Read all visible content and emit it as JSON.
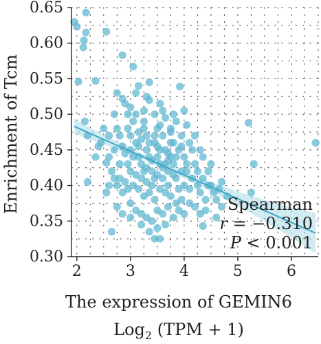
{
  "chart_data": {
    "type": "scatter",
    "xlabel_line1": "The expression of GEMIN6",
    "xlabel_line2_prefix": "Log",
    "xlabel_line2_sub": "2",
    "xlabel_line2_suffix": " (TPM + 1)",
    "ylabel": "Enrichment of Tcm",
    "xlim": [
      1.9,
      6.5
    ],
    "ylim": [
      0.3,
      0.65
    ],
    "x_ticks": [
      2,
      3,
      4,
      5,
      6
    ],
    "x_tick_labels": [
      "2",
      "3",
      "4",
      "5",
      "6"
    ],
    "y_ticks": [
      0.3,
      0.35,
      0.4,
      0.45,
      0.5,
      0.55,
      0.6,
      0.65
    ],
    "y_tick_labels": [
      "0.30",
      "0.35",
      "0.40",
      "0.45",
      "0.50",
      "0.55",
      "0.60",
      "0.65"
    ],
    "grid": "dotted",
    "point_color": "#5bb5cf",
    "line_color": "#3aa6c5",
    "band_color": "#a9dbe8",
    "regression": {
      "x_start": 1.95,
      "y_start": 0.483,
      "x_end": 6.45,
      "y_end": 0.333
    },
    "annotation": {
      "line1": "Spearman",
      "line2_var": "r",
      "line2_value": " = −0.310",
      "line3_var": "P",
      "line3_value": " < 0.001",
      "position": "bottom-right"
    },
    "points": [
      [
        1.95,
        0.63
      ],
      [
        2.0,
        0.623
      ],
      [
        2.17,
        0.643
      ],
      [
        2.17,
        0.615
      ],
      [
        2.13,
        0.604
      ],
      [
        2.12,
        0.594
      ],
      [
        2.55,
        0.616
      ],
      [
        2.03,
        0.546
      ],
      [
        2.35,
        0.547
      ],
      [
        2.85,
        0.583
      ],
      [
        3.05,
        0.567
      ],
      [
        3.35,
        0.545
      ],
      [
        3.15,
        0.54
      ],
      [
        3.92,
        0.539
      ],
      [
        2.75,
        0.53
      ],
      [
        2.85,
        0.522
      ],
      [
        2.15,
        0.49
      ],
      [
        2.2,
        0.47
      ],
      [
        2.2,
        0.405
      ],
      [
        2.65,
        0.335
      ],
      [
        3.55,
        0.325
      ],
      [
        4.35,
        0.343
      ],
      [
        4.7,
        0.37
      ],
      [
        4.7,
        0.405
      ],
      [
        5.2,
        0.488
      ],
      [
        5.3,
        0.43
      ],
      [
        5.25,
        0.39
      ],
      [
        6.45,
        0.46
      ],
      [
        2.6,
        0.44
      ],
      [
        2.55,
        0.432
      ],
      [
        2.45,
        0.46
      ],
      [
        2.7,
        0.5
      ],
      [
        2.75,
        0.48
      ],
      [
        2.8,
        0.47
      ],
      [
        2.85,
        0.455
      ],
      [
        2.9,
        0.445
      ],
      [
        2.95,
        0.43
      ],
      [
        3.0,
        0.42
      ],
      [
        3.0,
        0.47
      ],
      [
        3.05,
        0.49
      ],
      [
        3.1,
        0.5
      ],
      [
        3.1,
        0.46
      ],
      [
        3.15,
        0.44
      ],
      [
        3.2,
        0.43
      ],
      [
        3.2,
        0.41
      ],
      [
        3.25,
        0.48
      ],
      [
        3.3,
        0.47
      ],
      [
        3.3,
        0.45
      ],
      [
        3.35,
        0.44
      ],
      [
        3.4,
        0.42
      ],
      [
        3.4,
        0.4
      ],
      [
        3.45,
        0.46
      ],
      [
        3.5,
        0.48
      ],
      [
        3.5,
        0.44
      ],
      [
        3.55,
        0.43
      ],
      [
        3.6,
        0.41
      ],
      [
        3.6,
        0.47
      ],
      [
        3.65,
        0.45
      ],
      [
        3.7,
        0.42
      ],
      [
        3.7,
        0.4
      ],
      [
        3.75,
        0.44
      ],
      [
        3.8,
        0.46
      ],
      [
        3.8,
        0.43
      ],
      [
        3.85,
        0.41
      ],
      [
        3.9,
        0.45
      ],
      [
        3.95,
        0.42
      ],
      [
        4.0,
        0.44
      ],
      [
        4.0,
        0.4
      ],
      [
        4.05,
        0.43
      ],
      [
        4.1,
        0.46
      ],
      [
        4.15,
        0.41
      ],
      [
        4.2,
        0.43
      ],
      [
        4.25,
        0.4
      ],
      [
        4.3,
        0.39
      ],
      [
        4.35,
        0.41
      ],
      [
        4.4,
        0.38
      ],
      [
        4.5,
        0.4
      ],
      [
        4.55,
        0.39
      ],
      [
        4.6,
        0.38
      ],
      [
        4.1,
        0.375
      ],
      [
        3.95,
        0.38
      ],
      [
        3.85,
        0.375
      ],
      [
        3.75,
        0.385
      ],
      [
        3.65,
        0.39
      ],
      [
        3.55,
        0.395
      ],
      [
        3.45,
        0.38
      ],
      [
        3.35,
        0.39
      ],
      [
        3.25,
        0.385
      ],
      [
        3.15,
        0.395
      ],
      [
        3.05,
        0.4
      ],
      [
        2.95,
        0.395
      ],
      [
        2.85,
        0.39
      ],
      [
        2.75,
        0.4
      ],
      [
        2.7,
        0.41
      ],
      [
        2.65,
        0.42
      ],
      [
        3.0,
        0.375
      ],
      [
        3.1,
        0.365
      ],
      [
        3.2,
        0.36
      ],
      [
        3.3,
        0.355
      ],
      [
        3.4,
        0.35
      ],
      [
        3.5,
        0.365
      ],
      [
        3.6,
        0.36
      ],
      [
        3.7,
        0.37
      ],
      [
        3.8,
        0.355
      ],
      [
        3.9,
        0.365
      ],
      [
        4.0,
        0.36
      ],
      [
        4.2,
        0.37
      ],
      [
        4.3,
        0.36
      ],
      [
        3.2,
        0.345
      ],
      [
        3.35,
        0.335
      ],
      [
        3.5,
        0.34
      ],
      [
        3.65,
        0.345
      ],
      [
        2.9,
        0.515
      ],
      [
        3.0,
        0.51
      ],
      [
        3.25,
        0.505
      ],
      [
        3.45,
        0.5
      ],
      [
        3.65,
        0.495
      ],
      [
        3.85,
        0.49
      ],
      [
        4.05,
        0.485
      ],
      [
        3.55,
        0.515
      ],
      [
        3.35,
        0.52
      ],
      [
        2.95,
        0.48
      ],
      [
        3.15,
        0.475
      ],
      [
        3.45,
        0.47
      ],
      [
        3.75,
        0.475
      ],
      [
        4.2,
        0.47
      ],
      [
        4.3,
        0.45
      ],
      [
        4.35,
        0.44
      ],
      [
        4.45,
        0.42
      ],
      [
        4.5,
        0.43
      ],
      [
        2.8,
        0.43
      ],
      [
        2.7,
        0.45
      ],
      [
        2.6,
        0.47
      ],
      [
        2.5,
        0.48
      ],
      [
        2.8,
        0.41
      ],
      [
        3.05,
        0.44
      ],
      [
        3.25,
        0.42
      ],
      [
        3.45,
        0.41
      ],
      [
        3.65,
        0.43
      ],
      [
        3.85,
        0.44
      ],
      [
        4.05,
        0.42
      ],
      [
        3.15,
        0.455
      ],
      [
        3.35,
        0.46
      ],
      [
        3.55,
        0.45
      ],
      [
        3.75,
        0.46
      ],
      [
        3.95,
        0.47
      ],
      [
        3.0,
        0.45
      ],
      [
        3.2,
        0.465
      ],
      [
        3.4,
        0.435
      ],
      [
        3.6,
        0.425
      ],
      [
        3.8,
        0.415
      ],
      [
        3.3,
        0.405
      ],
      [
        3.5,
        0.415
      ],
      [
        3.7,
        0.435
      ],
      [
        3.9,
        0.395
      ],
      [
        4.1,
        0.395
      ],
      [
        2.9,
        0.405
      ],
      [
        3.1,
        0.415
      ],
      [
        3.3,
        0.425
      ],
      [
        3.5,
        0.455
      ],
      [
        3.7,
        0.445
      ],
      [
        4.65,
        0.395
      ],
      [
        4.8,
        0.385
      ],
      [
        4.4,
        0.365
      ],
      [
        4.6,
        0.355
      ],
      [
        2.6,
        0.4
      ],
      [
        2.55,
        0.39
      ],
      [
        2.75,
        0.37
      ],
      [
        2.85,
        0.36
      ],
      [
        3.0,
        0.355
      ],
      [
        3.45,
        0.325
      ],
      [
        2.4,
        0.455
      ],
      [
        2.35,
        0.44
      ],
      [
        3.6,
        0.505
      ],
      [
        3.8,
        0.5
      ],
      [
        4.0,
        0.505
      ],
      [
        3.1,
        0.53
      ],
      [
        3.3,
        0.525
      ],
      [
        2.95,
        0.5
      ],
      [
        3.25,
        0.49
      ],
      [
        3.55,
        0.485
      ],
      [
        3.75,
        0.48
      ],
      [
        3.95,
        0.455
      ],
      [
        4.15,
        0.45
      ],
      [
        4.25,
        0.42
      ],
      [
        4.45,
        0.4
      ]
    ]
  }
}
